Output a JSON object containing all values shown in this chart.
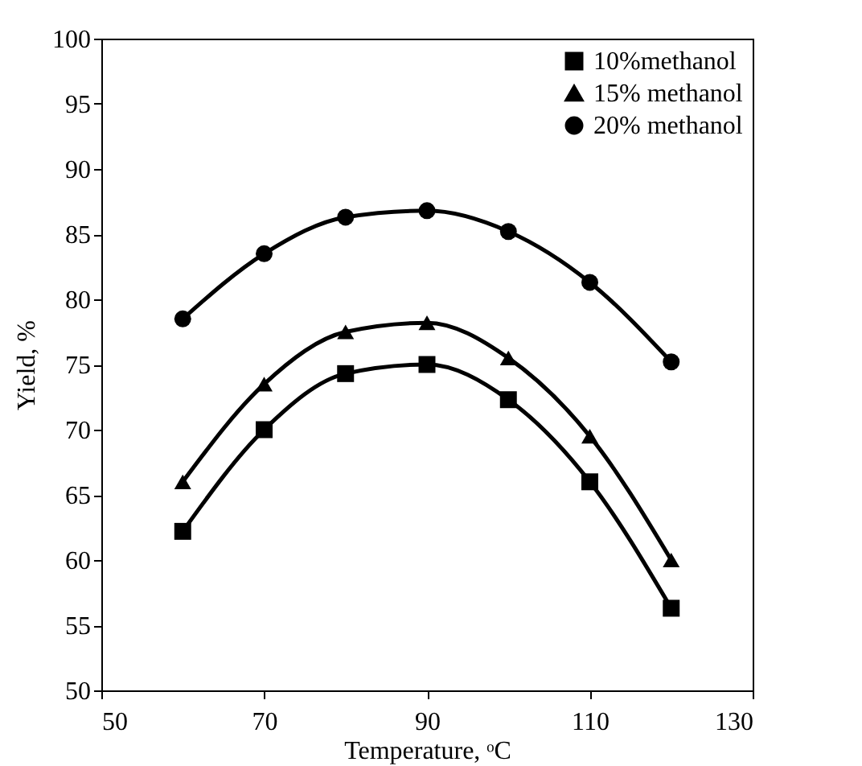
{
  "chart_data": {
    "type": "line",
    "xlabel": "Temperature, ᵒC",
    "ylabel": "Yield, %",
    "x": [
      60,
      70,
      80,
      90,
      100,
      110,
      120
    ],
    "series": [
      {
        "name": "10%methanol",
        "color": "#000000",
        "marker": "square",
        "values": [
          62.2,
          70,
          74.3,
          75,
          72.3,
          66,
          56.3
        ]
      },
      {
        "name": "15% methanol",
        "color": "#000000",
        "marker": "triangle",
        "values": [
          66,
          73.5,
          77.5,
          78.2,
          75.5,
          69.5,
          60
        ]
      },
      {
        "name": "20% methanol",
        "color": "#000000",
        "marker": "circle",
        "values": [
          78.5,
          83.5,
          86.3,
          86.8,
          85.2,
          81.3,
          75.2
        ]
      }
    ],
    "xlim": [
      50,
      130
    ],
    "xticks": [
      50,
      70,
      90,
      110,
      130
    ],
    "ylim": [
      50,
      100
    ],
    "yticks": [
      50,
      55,
      60,
      65,
      70,
      75,
      80,
      85,
      90,
      95,
      100
    ],
    "legend": "top right",
    "line_style": "solid"
  }
}
